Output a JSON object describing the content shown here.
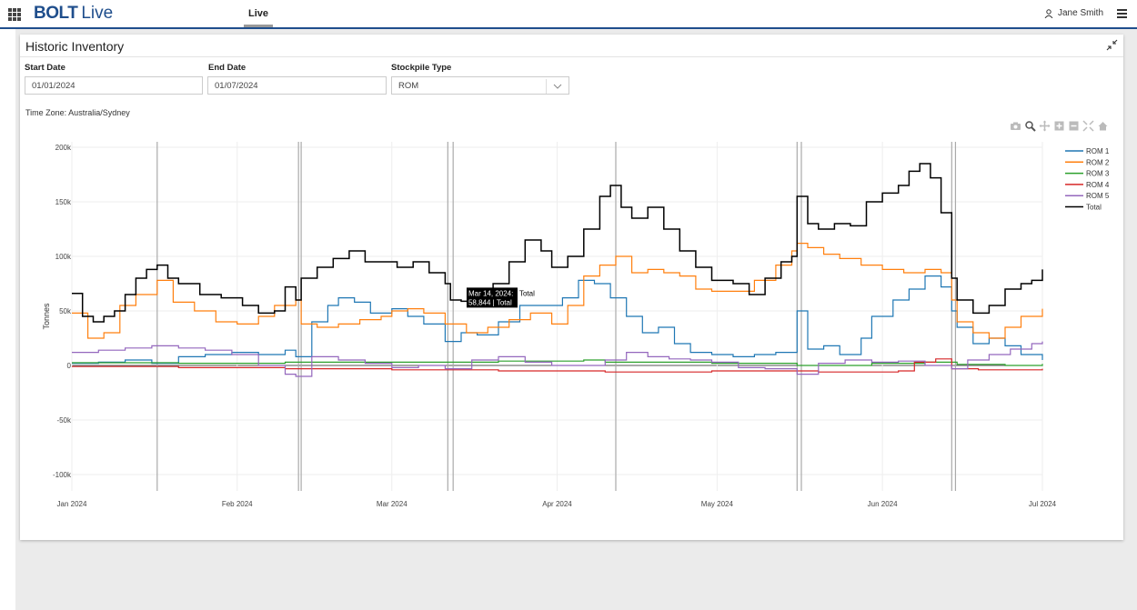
{
  "app": {
    "brand": "BOLT",
    "brand_suffix": "Live",
    "nav_tab": "Live",
    "user_name": "Jane Smith"
  },
  "panel": {
    "title": "Historic Inventory",
    "start_date_label": "Start Date",
    "start_date_value": "01/01/2024",
    "end_date_label": "End Date",
    "end_date_value": "01/07/2024",
    "stockpile_label": "Stockpile Type",
    "stockpile_value": "ROM",
    "timezone": "Time Zone: Australia/Sydney"
  },
  "modebar_icons": [
    "camera-icon",
    "zoom-icon",
    "pan-icon",
    "zoom-in-icon",
    "zoom-out-icon",
    "autoscale-icon",
    "home-icon"
  ],
  "chart_data": {
    "type": "line",
    "title": "",
    "xlabel": "",
    "ylabel": "Tonnes",
    "x_tick_labels": [
      "Jan 2024",
      "Feb 2024",
      "Mar 2024",
      "Apr 2024",
      "May 2024",
      "Jun 2024",
      "Jul 2024"
    ],
    "x_tick_days": [
      0,
      31,
      60,
      91,
      121,
      152,
      182
    ],
    "y_ticks": [
      200000,
      150000,
      100000,
      50000,
      0,
      -50000,
      -100000
    ],
    "y_tick_labels": [
      "200k",
      "150k",
      "100k",
      "50k",
      "0",
      "-50k",
      "-100k"
    ],
    "ylim": [
      -115000,
      205000
    ],
    "xlim_days": [
      0,
      182
    ],
    "grid": true,
    "legend_position": "right",
    "event_lines_days": [
      16,
      42.5,
      43,
      70.5,
      71.5,
      102,
      136,
      136.8,
      165,
      165.7
    ],
    "tooltip": {
      "line1": "Mar 14, 2024:",
      "line1_series": "Total",
      "line2": "58,844 | Total"
    },
    "series": [
      {
        "name": "ROM 1",
        "color": "#1f77b4",
        "points": [
          [
            0,
            2000
          ],
          [
            5,
            3000
          ],
          [
            10,
            5000
          ],
          [
            15,
            2000
          ],
          [
            20,
            8000
          ],
          [
            25,
            10000
          ],
          [
            30,
            12000
          ],
          [
            35,
            10000
          ],
          [
            40,
            14000
          ],
          [
            42,
            8000
          ],
          [
            45,
            40000
          ],
          [
            48,
            55000
          ],
          [
            50,
            62000
          ],
          [
            53,
            58000
          ],
          [
            56,
            48000
          ],
          [
            60,
            52000
          ],
          [
            63,
            45000
          ],
          [
            66,
            38000
          ],
          [
            70,
            22000
          ],
          [
            73,
            30000
          ],
          [
            76,
            28000
          ],
          [
            80,
            40000
          ],
          [
            84,
            55000
          ],
          [
            88,
            55000
          ],
          [
            92,
            62000
          ],
          [
            95,
            78000
          ],
          [
            98,
            75000
          ],
          [
            101,
            62000
          ],
          [
            104,
            45000
          ],
          [
            107,
            30000
          ],
          [
            110,
            35000
          ],
          [
            113,
            20000
          ],
          [
            116,
            12000
          ],
          [
            120,
            10000
          ],
          [
            124,
            8000
          ],
          [
            128,
            10000
          ],
          [
            132,
            12000
          ],
          [
            136,
            50000
          ],
          [
            138,
            15000
          ],
          [
            141,
            18000
          ],
          [
            144,
            10000
          ],
          [
            148,
            25000
          ],
          [
            150,
            45000
          ],
          [
            154,
            60000
          ],
          [
            157,
            70000
          ],
          [
            160,
            82000
          ],
          [
            163,
            72000
          ],
          [
            165,
            50000
          ],
          [
            166,
            35000
          ],
          [
            169,
            20000
          ],
          [
            172,
            25000
          ],
          [
            175,
            18000
          ],
          [
            178,
            10000
          ],
          [
            182,
            5000
          ]
        ]
      },
      {
        "name": "ROM 2",
        "color": "#ff7f0e",
        "points": [
          [
            0,
            48000
          ],
          [
            3,
            25000
          ],
          [
            6,
            30000
          ],
          [
            9,
            55000
          ],
          [
            12,
            65000
          ],
          [
            16,
            78000
          ],
          [
            19,
            58000
          ],
          [
            23,
            50000
          ],
          [
            27,
            40000
          ],
          [
            31,
            38000
          ],
          [
            35,
            45000
          ],
          [
            38,
            55000
          ],
          [
            40,
            55000
          ],
          [
            42,
            60000
          ],
          [
            43,
            38000
          ],
          [
            46,
            35000
          ],
          [
            50,
            38000
          ],
          [
            54,
            42000
          ],
          [
            58,
            45000
          ],
          [
            60,
            50000
          ],
          [
            63,
            52000
          ],
          [
            66,
            48000
          ],
          [
            70,
            38000
          ],
          [
            74,
            30000
          ],
          [
            78,
            35000
          ],
          [
            82,
            42000
          ],
          [
            86,
            48000
          ],
          [
            90,
            38000
          ],
          [
            93,
            55000
          ],
          [
            96,
            82000
          ],
          [
            99,
            92000
          ],
          [
            102,
            100000
          ],
          [
            105,
            85000
          ],
          [
            108,
            88000
          ],
          [
            111,
            85000
          ],
          [
            114,
            82000
          ],
          [
            117,
            70000
          ],
          [
            120,
            68000
          ],
          [
            124,
            68000
          ],
          [
            128,
            78000
          ],
          [
            132,
            92000
          ],
          [
            135,
            105000
          ],
          [
            136,
            112000
          ],
          [
            138,
            108000
          ],
          [
            141,
            102000
          ],
          [
            144,
            98000
          ],
          [
            148,
            92000
          ],
          [
            152,
            88000
          ],
          [
            156,
            85000
          ],
          [
            160,
            88000
          ],
          [
            163,
            85000
          ],
          [
            165,
            60000
          ],
          [
            166,
            40000
          ],
          [
            169,
            30000
          ],
          [
            172,
            25000
          ],
          [
            175,
            35000
          ],
          [
            178,
            45000
          ],
          [
            182,
            52000
          ]
        ]
      },
      {
        "name": "ROM 3",
        "color": "#2ca02c",
        "points": [
          [
            0,
            2500
          ],
          [
            20,
            2000
          ],
          [
            40,
            3000
          ],
          [
            60,
            3000
          ],
          [
            80,
            4000
          ],
          [
            96,
            5000
          ],
          [
            100,
            3000
          ],
          [
            120,
            2000
          ],
          [
            136,
            0
          ],
          [
            150,
            2000
          ],
          [
            160,
            3000
          ],
          [
            166,
            1000
          ],
          [
            175,
            0
          ],
          [
            182,
            1500
          ]
        ]
      },
      {
        "name": "ROM 4",
        "color": "#d62728",
        "points": [
          [
            0,
            -1000
          ],
          [
            20,
            -2000
          ],
          [
            40,
            -3000
          ],
          [
            60,
            -4000
          ],
          [
            80,
            -5000
          ],
          [
            100,
            -6000
          ],
          [
            120,
            -5000
          ],
          [
            140,
            -6000
          ],
          [
            155,
            -5000
          ],
          [
            158,
            3000
          ],
          [
            162,
            6000
          ],
          [
            165,
            -3000
          ],
          [
            170,
            -4000
          ],
          [
            182,
            -3000
          ]
        ]
      },
      {
        "name": "ROM 5",
        "color": "#9467bd",
        "points": [
          [
            0,
            12000
          ],
          [
            5,
            14000
          ],
          [
            10,
            16000
          ],
          [
            15,
            18000
          ],
          [
            20,
            16000
          ],
          [
            25,
            14000
          ],
          [
            30,
            10000
          ],
          [
            35,
            0
          ],
          [
            40,
            -8000
          ],
          [
            42,
            -10000
          ],
          [
            45,
            8000
          ],
          [
            50,
            5000
          ],
          [
            55,
            2000
          ],
          [
            60,
            -2000
          ],
          [
            65,
            0
          ],
          [
            70,
            -3000
          ],
          [
            75,
            5000
          ],
          [
            80,
            8000
          ],
          [
            85,
            3000
          ],
          [
            90,
            0
          ],
          [
            95,
            0
          ],
          [
            100,
            5000
          ],
          [
            104,
            12000
          ],
          [
            108,
            8000
          ],
          [
            112,
            6000
          ],
          [
            116,
            5000
          ],
          [
            120,
            3000
          ],
          [
            125,
            -2000
          ],
          [
            130,
            -3000
          ],
          [
            136,
            -8000
          ],
          [
            140,
            2000
          ],
          [
            145,
            5000
          ],
          [
            150,
            3000
          ],
          [
            155,
            4000
          ],
          [
            160,
            0
          ],
          [
            165,
            -3000
          ],
          [
            168,
            5000
          ],
          [
            172,
            10000
          ],
          [
            176,
            15000
          ],
          [
            180,
            20000
          ],
          [
            182,
            22000
          ]
        ]
      },
      {
        "name": "Total",
        "color": "#000000",
        "points": [
          [
            0,
            66000
          ],
          [
            2,
            45000
          ],
          [
            4,
            40000
          ],
          [
            6,
            45000
          ],
          [
            8,
            50000
          ],
          [
            10,
            65000
          ],
          [
            12,
            80000
          ],
          [
            14,
            88000
          ],
          [
            16,
            92000
          ],
          [
            18,
            80000
          ],
          [
            20,
            75000
          ],
          [
            24,
            65000
          ],
          [
            28,
            62000
          ],
          [
            32,
            55000
          ],
          [
            35,
            48000
          ],
          [
            38,
            50000
          ],
          [
            40,
            72000
          ],
          [
            42,
            60000
          ],
          [
            43,
            80000
          ],
          [
            46,
            90000
          ],
          [
            49,
            98000
          ],
          [
            52,
            105000
          ],
          [
            55,
            95000
          ],
          [
            58,
            95000
          ],
          [
            61,
            90000
          ],
          [
            64,
            95000
          ],
          [
            67,
            85000
          ],
          [
            70,
            75000
          ],
          [
            71,
            60000
          ],
          [
            73,
            58844
          ],
          [
            76,
            60000
          ],
          [
            79,
            75000
          ],
          [
            82,
            95000
          ],
          [
            85,
            115000
          ],
          [
            88,
            105000
          ],
          [
            90,
            90000
          ],
          [
            93,
            100000
          ],
          [
            96,
            125000
          ],
          [
            99,
            155000
          ],
          [
            101,
            165000
          ],
          [
            103,
            145000
          ],
          [
            105,
            135000
          ],
          [
            108,
            145000
          ],
          [
            111,
            125000
          ],
          [
            114,
            105000
          ],
          [
            117,
            90000
          ],
          [
            120,
            78000
          ],
          [
            124,
            75000
          ],
          [
            127,
            65000
          ],
          [
            130,
            80000
          ],
          [
            133,
            95000
          ],
          [
            135,
            100000
          ],
          [
            136,
            155000
          ],
          [
            138,
            130000
          ],
          [
            140,
            125000
          ],
          [
            143,
            130000
          ],
          [
            146,
            128000
          ],
          [
            149,
            150000
          ],
          [
            152,
            158000
          ],
          [
            155,
            165000
          ],
          [
            157,
            178000
          ],
          [
            159,
            185000
          ],
          [
            161,
            172000
          ],
          [
            163,
            140000
          ],
          [
            165,
            80000
          ],
          [
            166,
            60000
          ],
          [
            169,
            48000
          ],
          [
            172,
            55000
          ],
          [
            175,
            70000
          ],
          [
            178,
            75000
          ],
          [
            180,
            78000
          ],
          [
            182,
            88000
          ]
        ]
      }
    ]
  }
}
